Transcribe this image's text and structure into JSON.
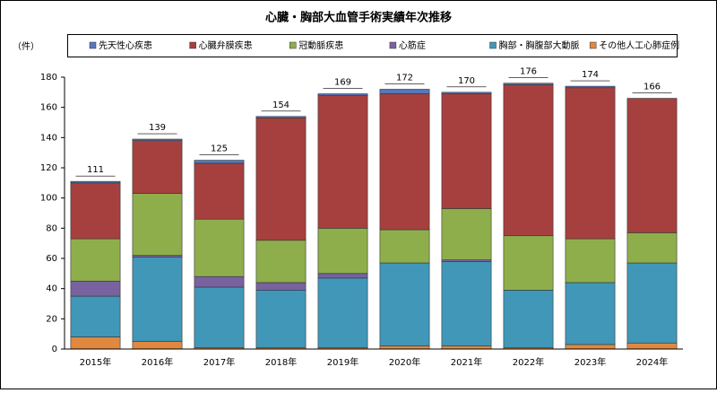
{
  "chart_data": {
    "type": "stacked_bar",
    "title": "心臓・胸部大血管手術実績年次推移",
    "ylabel": "（件）",
    "categories": [
      "2015年",
      "2016年",
      "2017年",
      "2018年",
      "2019年",
      "2020年",
      "2021年",
      "2022年",
      "2023年",
      "2024年"
    ],
    "series": [
      {
        "name": "その他人工心肺症例",
        "color": "#e0883f",
        "values": [
          8,
          5,
          1,
          1,
          1,
          2,
          2,
          1,
          3,
          4
        ]
      },
      {
        "name": "胸部・胸腹部大動脈",
        "color": "#4197b8",
        "values": [
          27,
          56,
          40,
          38,
          46,
          55,
          56,
          38,
          41,
          53
        ]
      },
      {
        "name": "心筋症",
        "color": "#7862a0",
        "values": [
          10,
          1,
          7,
          5,
          3,
          0,
          1,
          0,
          0,
          0
        ]
      },
      {
        "name": "冠動脈疾患",
        "color": "#8eae4c",
        "values": [
          28,
          41,
          38,
          28,
          30,
          22,
          34,
          36,
          29,
          20
        ]
      },
      {
        "name": "心臓弁膜疾患",
        "color": "#a6403e",
        "values": [
          37,
          35,
          37,
          81,
          88,
          90,
          76,
          100,
          100,
          89
        ]
      },
      {
        "name": "先天性心疾患",
        "color": "#5479bd",
        "values": [
          1,
          1,
          2,
          1,
          1,
          3,
          1,
          1,
          1,
          0
        ]
      }
    ],
    "totals": [
      111,
      139,
      125,
      154,
      169,
      172,
      170,
      176,
      174,
      166
    ],
    "legend_order": [
      5,
      4,
      3,
      2,
      1,
      0
    ],
    "ylim": [
      0,
      180
    ],
    "yticks": [
      0,
      20,
      40,
      60,
      80,
      100,
      120,
      140,
      160,
      180
    ],
    "grid": false
  }
}
